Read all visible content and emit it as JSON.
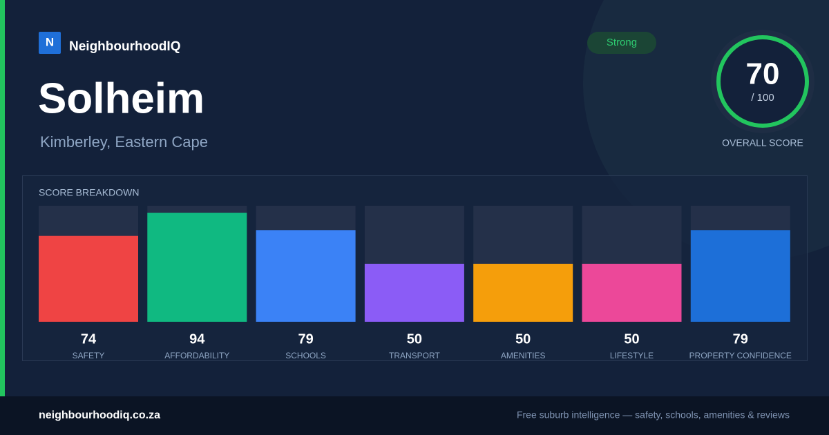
{
  "header": {
    "logo_letter": "N",
    "brand": "NeighbourhoodIQ",
    "title": "Solheim",
    "subtitle": "Kimberley, Eastern Cape",
    "badge": "Strong"
  },
  "score": {
    "value": "70",
    "max_label": "/ 100",
    "label": "OVERALL SCORE"
  },
  "chart_data": {
    "type": "bar",
    "title": "SCORE BREAKDOWN",
    "categories": [
      "SAFETY",
      "AFFORDABILITY",
      "SCHOOLS",
      "TRANSPORT",
      "AMENITIES",
      "LIFESTYLE",
      "PROPERTY CONFIDENCE"
    ],
    "values": [
      74,
      94,
      79,
      50,
      50,
      50,
      79
    ],
    "colors": [
      "#ef4444",
      "#10b981",
      "#3b82f6",
      "#8b5cf6",
      "#f59e0b",
      "#ec4899",
      "#1d6fd8"
    ],
    "ylim": [
      0,
      100
    ]
  },
  "footer": {
    "site": "neighbourhoodiq.co.za",
    "tagline": "Free suburb intelligence — safety, schools, amenities & reviews"
  }
}
